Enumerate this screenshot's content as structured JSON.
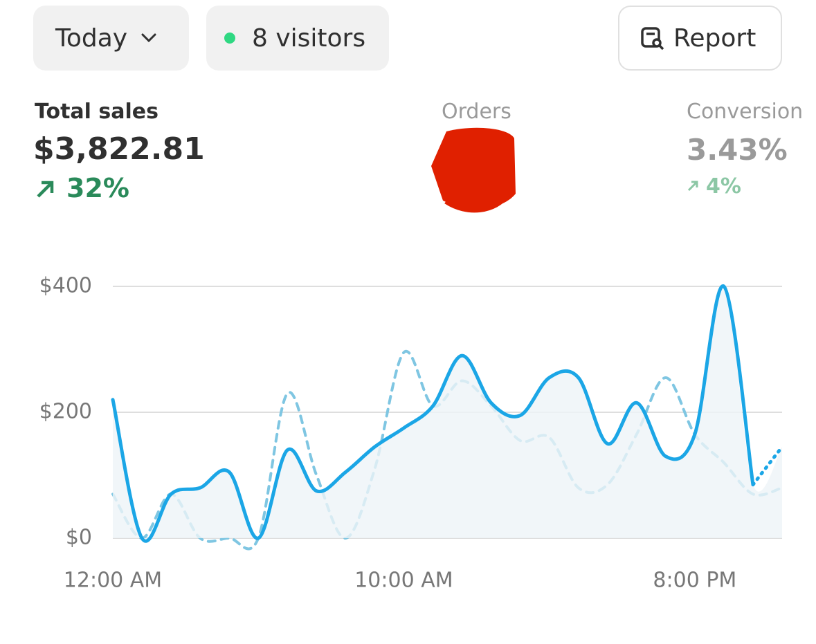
{
  "toolbar": {
    "period": "Today",
    "visitors": "8 visitors",
    "report": "Report"
  },
  "metrics": [
    {
      "label": "Total sales",
      "value": "$3,822.81",
      "change": "32%"
    },
    {
      "label": "Orders"
    },
    {
      "label": "Conversion",
      "value": "3.43%",
      "change": "4%"
    }
  ],
  "chart_data": {
    "type": "line",
    "categories": [
      "12:00 AM",
      null,
      null,
      null,
      null,
      null,
      null,
      null,
      null,
      null,
      "10:00 AM",
      null,
      null,
      null,
      null,
      null,
      null,
      null,
      null,
      null,
      "8:00 PM",
      null,
      null,
      null
    ],
    "series": [
      {
        "color": "#1ba6e6",
        "style": "solid",
        "last_point_dotted": true,
        "values": [
          220,
          0,
          70,
          80,
          105,
          0,
          140,
          75,
          105,
          145,
          175,
          210,
          290,
          215,
          195,
          255,
          255,
          150,
          215,
          130,
          165,
          400,
          85,
          145
        ]
      },
      {
        "color": "#7fc6e2",
        "style": "dashed",
        "values": [
          70,
          0,
          70,
          0,
          0,
          0,
          230,
          100,
          0,
          110,
          295,
          210,
          250,
          210,
          155,
          160,
          80,
          85,
          165,
          255,
          165,
          120,
          70,
          80
        ]
      }
    ],
    "ylim": [
      0,
      400
    ],
    "yticks": [
      {
        "value": 0,
        "label": "$0"
      },
      {
        "value": 200,
        "label": "$200"
      },
      {
        "value": 400,
        "label": "$400"
      }
    ],
    "grid": true
  }
}
